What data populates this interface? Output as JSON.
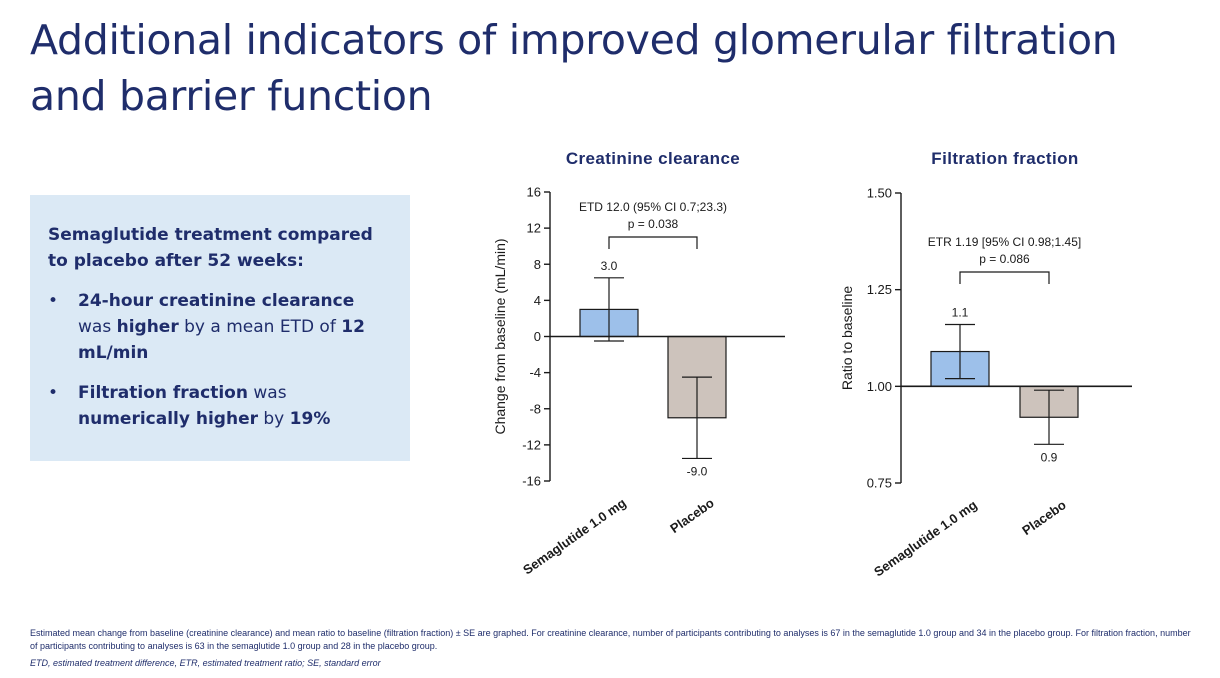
{
  "slide": {
    "title": "Additional indicators of improved glomerular filtration and barrier function",
    "box": {
      "heading": "Semaglutide treatment compared to placebo after 52 weeks:",
      "bullet_glyph": "•",
      "bullets": [
        [
          {
            "text": "24-hour creatinine clearance",
            "bold": true
          },
          {
            "text": " was ",
            "bold": false
          },
          {
            "text": "higher",
            "bold": true
          },
          {
            "text": " by a mean ETD of ",
            "bold": false
          },
          {
            "text": "12 mL/min",
            "bold": true
          }
        ],
        [
          {
            "text": "Filtration fraction",
            "bold": true
          },
          {
            "text": " was ",
            "bold": false
          },
          {
            "text": "numerically higher",
            "bold": true
          },
          {
            "text": " by ",
            "bold": false
          },
          {
            "text": "19%",
            "bold": true
          }
        ]
      ]
    },
    "footnote": "Estimated mean change from baseline (creatinine clearance) and mean ratio to baseline (filtration fraction) ± SE are graphed. For creatinine clearance, number of participants contributing to analyses is 67 in the semaglutide 1.0 group and 34 in the placebo group. For filtration fraction, number of participants contributing to analyses is 63 in the semaglutide 1.0 group and 28 in the placebo group.",
    "abbreviations": "ETD, estimated treatment difference, ETR, estimated treatment ratio; SE, standard error"
  },
  "colors": {
    "title": "#1f2d6b",
    "box_bg": "#dbe9f5",
    "semaglutide_bar": "#9dc0ea",
    "placebo_bar": "#cdc3bc",
    "axis": "#1a1a1a"
  },
  "chart_data": [
    {
      "type": "bar",
      "title": "Creatinine clearance",
      "ylabel": "Change from baseline (mL/min)",
      "xlabel": "",
      "ylim": [
        -16,
        16
      ],
      "yticks": [
        16,
        12,
        8,
        4,
        0,
        -4,
        -8,
        -12,
        -16
      ],
      "ytick_labels": [
        "16",
        "12",
        "8",
        "4",
        "0",
        "-4",
        "-8",
        "-12",
        "-16"
      ],
      "baseline": 0,
      "categories": [
        "Semaglutide 1.0 mg",
        "Placebo"
      ],
      "values": [
        3.0,
        -9.0
      ],
      "errors": [
        3.5,
        4.5
      ],
      "value_labels": [
        "3.0",
        "-9.0"
      ],
      "annotation": [
        "ETD 12.0 (95% CI 0.7;23.3)",
        "p = 0.038"
      ]
    },
    {
      "type": "bar",
      "title": "Filtration fraction",
      "ylabel": "Ratio to baseline",
      "xlabel": "",
      "ylim": [
        0.75,
        1.5
      ],
      "yticks": [
        1.5,
        1.25,
        1.0,
        0.75
      ],
      "ytick_labels": [
        "1.50",
        "1.25",
        "1.00",
        "0.75"
      ],
      "baseline": 1.0,
      "categories": [
        "Semaglutide 1.0 mg",
        "Placebo"
      ],
      "values": [
        1.09,
        0.92
      ],
      "errors": [
        0.07,
        0.07
      ],
      "value_labels": [
        "1.1",
        "0.9"
      ],
      "annotation": [
        "ETR 1.19 [95% CI 0.98;1.45]",
        "p = 0.086"
      ]
    }
  ]
}
